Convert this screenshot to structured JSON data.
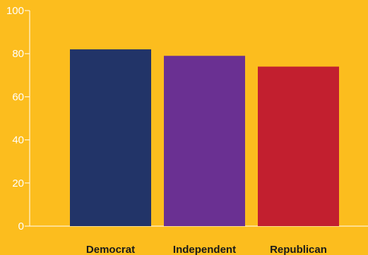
{
  "colors": {
    "background": "#FCBD1E",
    "axis": "#FFFFFF",
    "tick_text": "#FFFFFF",
    "category_text": "#1A1A1A"
  },
  "chart_data": {
    "type": "bar",
    "categories": [
      "Democrat",
      "Independent",
      "Republican"
    ],
    "values": [
      82,
      79,
      74
    ],
    "colors": [
      "#223468",
      "#6A3092",
      "#C21F2F"
    ],
    "ylim": [
      0,
      100
    ],
    "yticks": [
      0,
      20,
      40,
      60,
      80,
      100
    ],
    "ytick_labels": [
      "0",
      "20",
      "40",
      "60",
      "80",
      "100"
    ],
    "grid": false,
    "legend": "none",
    "title": "",
    "xlabel": "",
    "ylabel": ""
  }
}
